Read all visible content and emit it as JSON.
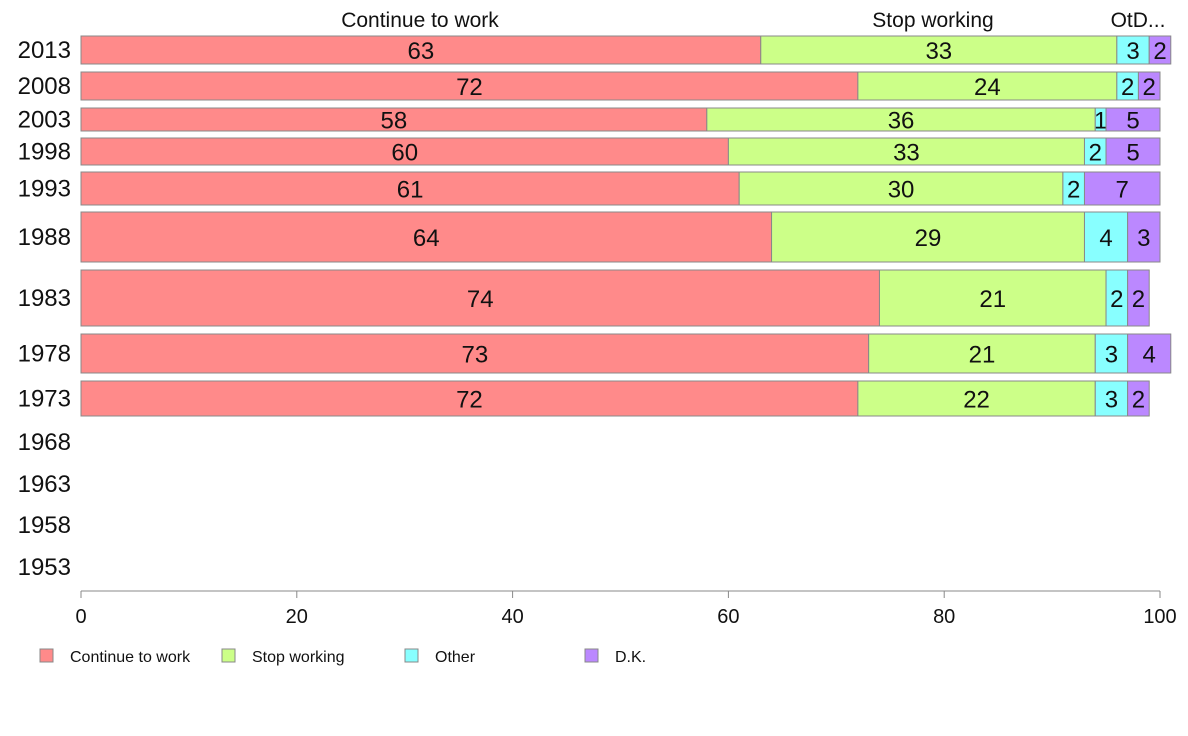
{
  "colors": {
    "continue": "#FF8A8A",
    "stop": "#CCFF88",
    "other": "#88FFFF",
    "dk": "#BB88FF",
    "bar_stroke": "#888888",
    "axis": "#888888"
  },
  "chart_data": {
    "type": "bar",
    "orientation": "horizontal",
    "stacked": true,
    "categories": [
      "2013",
      "2008",
      "2003",
      "1998",
      "1993",
      "1988",
      "1983",
      "1978",
      "1973",
      "1968",
      "1963",
      "1958",
      "1953"
    ],
    "top_labels": [
      "Continue to work",
      "Stop working",
      "OtD..."
    ],
    "series": [
      {
        "name": "Continue to work",
        "key": "continue",
        "values": [
          63,
          72,
          58,
          60,
          61,
          64,
          74,
          73,
          72,
          null,
          null,
          null,
          null
        ]
      },
      {
        "name": "Stop working",
        "key": "stop",
        "values": [
          33,
          24,
          36,
          33,
          30,
          29,
          21,
          21,
          22,
          null,
          null,
          null,
          null
        ]
      },
      {
        "name": "Other",
        "key": "other",
        "values": [
          3,
          2,
          1,
          2,
          2,
          4,
          2,
          3,
          3,
          null,
          null,
          null,
          null
        ]
      },
      {
        "name": "D.K.",
        "key": "dk",
        "values": [
          2,
          2,
          5,
          5,
          7,
          3,
          2,
          4,
          2,
          null,
          null,
          null,
          null
        ]
      }
    ],
    "xlim": [
      0,
      100
    ],
    "xticks": [
      0,
      20,
      40,
      60,
      80,
      100
    ],
    "legend_placement": "bottom-left",
    "grid": false
  }
}
